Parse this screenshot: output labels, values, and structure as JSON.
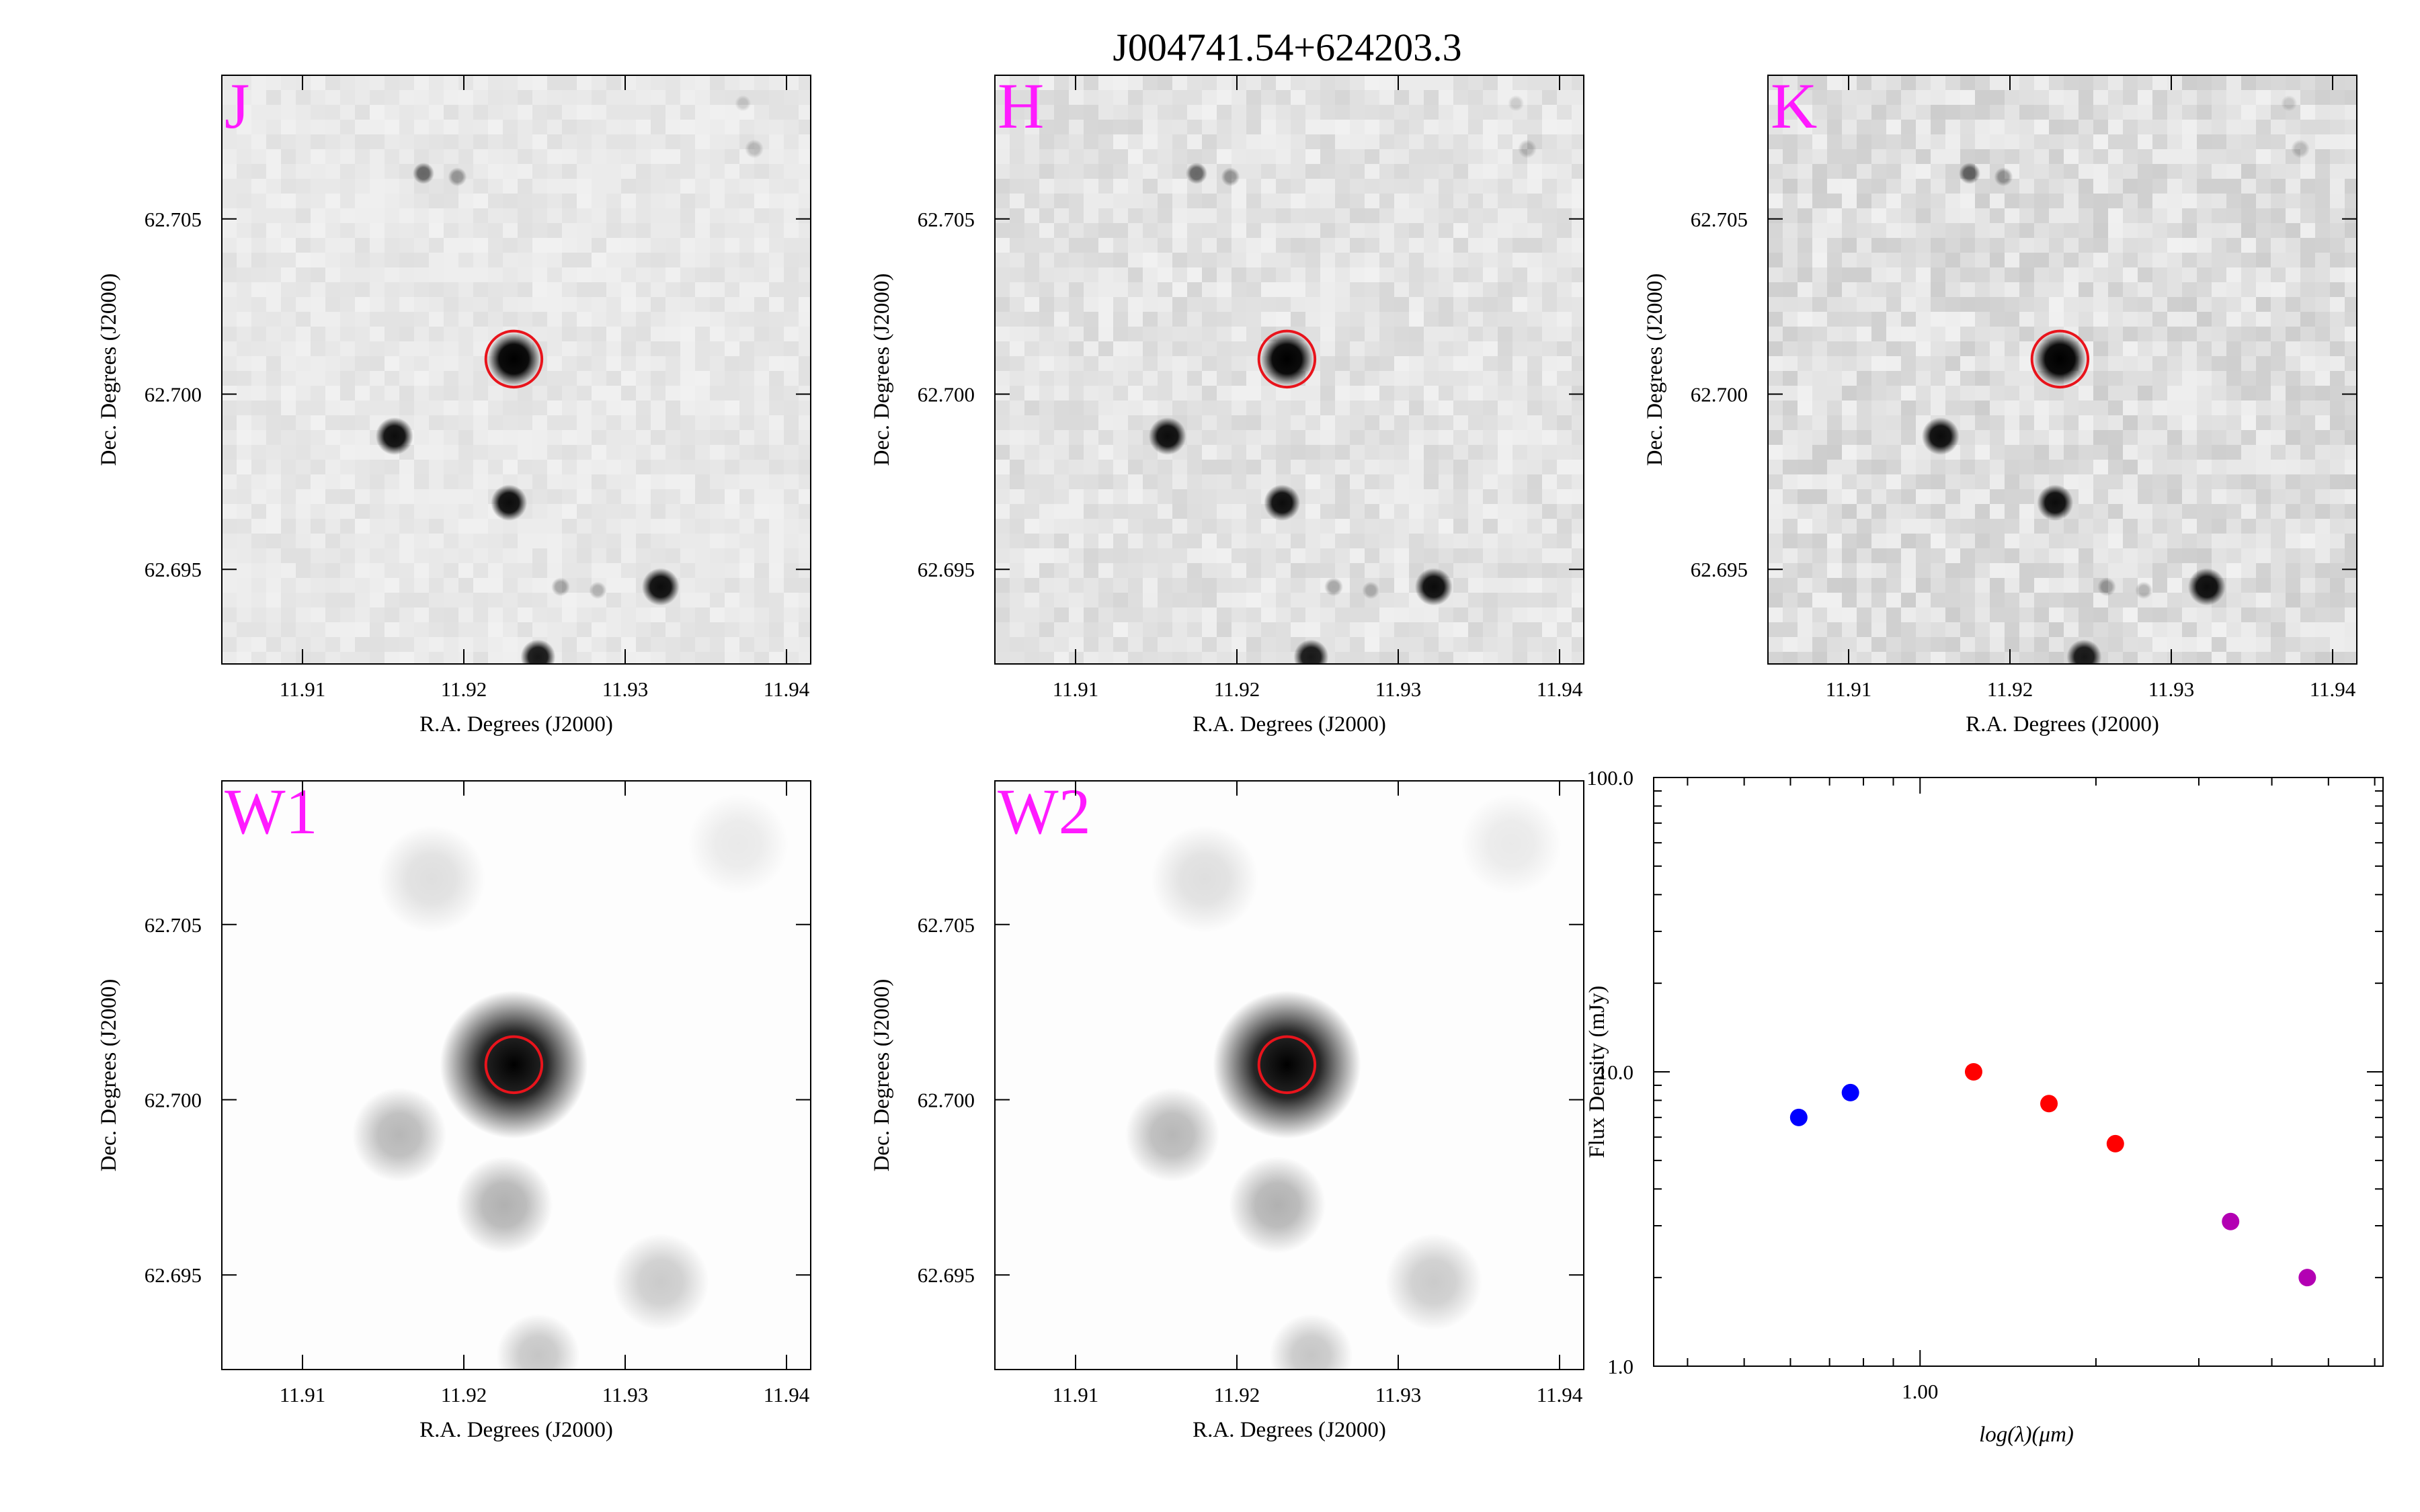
{
  "title": "J004741.54+624203.3",
  "colors": {
    "marker_circle": "#e8141c",
    "band_label": "#ff1aff",
    "nir_points": "#ff0000",
    "optical_points": "#0000ff",
    "wise_points": "#b300b3"
  },
  "image_panels": [
    {
      "band": "J",
      "kind": "nir",
      "xlabel": "R.A. Degrees (J2000)",
      "ylabel": "Dec. Degrees (J2000)"
    },
    {
      "band": "H",
      "kind": "nir",
      "xlabel": "R.A. Degrees (J2000)",
      "ylabel": "Dec. Degrees (J2000)"
    },
    {
      "band": "K",
      "kind": "nir",
      "xlabel": "R.A. Degrees (J2000)",
      "ylabel": "Dec. Degrees (J2000)"
    },
    {
      "band": "W1",
      "kind": "wise",
      "xlabel": "R.A. Degrees (J2000)",
      "ylabel": "Dec. Degrees (J2000)"
    },
    {
      "band": "W2",
      "kind": "wise",
      "xlabel": "R.A. Degrees (J2000)",
      "ylabel": "Dec. Degrees (J2000)"
    }
  ],
  "image_axes": {
    "ra_range": [
      11.905,
      11.9415
    ],
    "dec_range": [
      62.6923,
      62.7091
    ],
    "ra_ticks": [
      11.91,
      11.92,
      11.93,
      11.94
    ],
    "ra_tick_labels": [
      "11.91",
      "11.92",
      "11.93",
      "11.94"
    ],
    "dec_ticks": [
      62.695,
      62.7,
      62.705
    ],
    "dec_tick_labels": [
      "62.695",
      "62.700",
      "62.705"
    ],
    "target": {
      "ra": 11.9231,
      "dec": 62.701,
      "circle_radius_deg": 0.0008
    }
  },
  "chart_data": {
    "type": "scatter",
    "title": "",
    "xlabel": "log(λ)(μm)",
    "ylabel": "Flux Density (mJy)",
    "xscale": "log",
    "yscale": "log",
    "xlim": [
      0.35,
      6.2
    ],
    "ylim": [
      1.0,
      100.0
    ],
    "x_tick_labels": [
      "1.00"
    ],
    "y_ticks": [
      1.0,
      10.0,
      100.0
    ],
    "y_tick_labels": [
      "1.0",
      "10.0",
      "100.0"
    ],
    "grid": false,
    "series": [
      {
        "color": "#0000ff",
        "points": [
          {
            "x": 0.62,
            "y": 7.0
          },
          {
            "x": 0.76,
            "y": 8.5
          }
        ]
      },
      {
        "color": "#ff0000",
        "points": [
          {
            "x": 1.235,
            "y": 10.0
          },
          {
            "x": 1.662,
            "y": 7.8
          },
          {
            "x": 2.159,
            "y": 5.7
          }
        ]
      },
      {
        "color": "#b300b3",
        "points": [
          {
            "x": 3.4,
            "y": 3.1
          },
          {
            "x": 4.6,
            "y": 2.0
          }
        ]
      }
    ]
  }
}
